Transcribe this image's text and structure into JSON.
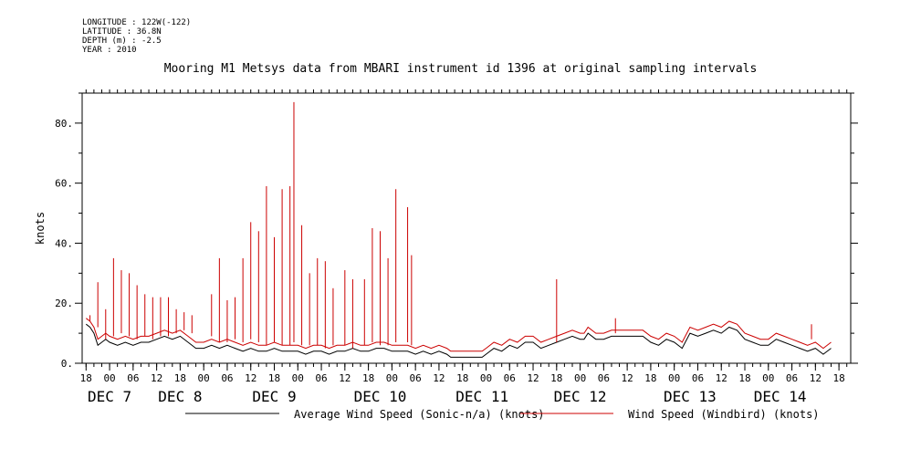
{
  "meta": {
    "longitude": "LONGITUDE : 122W(-122)",
    "latitude": "LATITUDE : 36.8N",
    "depth": "DEPTH (m) : -2.5",
    "year": "YEAR : 2010"
  },
  "chart_data": {
    "type": "line",
    "title": "Mooring M1 Metsys data from MBARI instrument id 1396 at original sampling intervals",
    "ylabel": "knots",
    "xlabel": "",
    "ylim": [
      0,
      90
    ],
    "yticks": [
      0,
      20,
      40,
      60,
      80
    ],
    "ytick_labels": [
      "0.",
      "20.",
      "40.",
      "60.",
      "80."
    ],
    "xlim": [
      0,
      186
    ],
    "x_units": "hours since DEC 6 18:00, 2010",
    "xtick_labels": [
      {
        "h": 0,
        "label": "18"
      },
      {
        "h": 6,
        "label": "00"
      },
      {
        "h": 12,
        "label": "06"
      },
      {
        "h": 18,
        "label": "12"
      },
      {
        "h": 24,
        "label": "18"
      },
      {
        "h": 30,
        "label": "00"
      },
      {
        "h": 36,
        "label": "06"
      },
      {
        "h": 42,
        "label": "12"
      },
      {
        "h": 48,
        "label": "18"
      },
      {
        "h": 54,
        "label": "00"
      },
      {
        "h": 60,
        "label": "06"
      },
      {
        "h": 66,
        "label": "12"
      },
      {
        "h": 72,
        "label": "18"
      },
      {
        "h": 78,
        "label": "00"
      },
      {
        "h": 84,
        "label": "06"
      },
      {
        "h": 90,
        "label": "12"
      },
      {
        "h": 96,
        "label": "18"
      },
      {
        "h": 102,
        "label": "00"
      },
      {
        "h": 108,
        "label": "06"
      },
      {
        "h": 114,
        "label": "12"
      },
      {
        "h": 120,
        "label": "18"
      },
      {
        "h": 126,
        "label": "00"
      },
      {
        "h": 132,
        "label": "06"
      },
      {
        "h": 138,
        "label": "12"
      },
      {
        "h": 144,
        "label": "18"
      },
      {
        "h": 150,
        "label": "00"
      },
      {
        "h": 156,
        "label": "06"
      },
      {
        "h": 162,
        "label": "12"
      },
      {
        "h": 168,
        "label": "18"
      },
      {
        "h": 174,
        "label": "00"
      },
      {
        "h": 180,
        "label": "06"
      },
      {
        "h": 186,
        "label": "12"
      },
      {
        "h": 192,
        "label": "18"
      }
    ],
    "date_labels": [
      {
        "h": 6,
        "label": "DEC  7"
      },
      {
        "h": 24,
        "label": "DEC  8"
      },
      {
        "h": 48,
        "label": "DEC  9"
      },
      {
        "h": 75,
        "label": "DEC 10"
      },
      {
        "h": 101,
        "label": "DEC 11"
      },
      {
        "h": 126,
        "label": "DEC 12"
      },
      {
        "h": 154,
        "label": "DEC 13"
      },
      {
        "h": 177,
        "label": "DEC 14"
      }
    ],
    "series": [
      {
        "name": "Average Wind Speed (Sonic-n/a) (knots)",
        "color": "#000000",
        "x": [
          0,
          1,
          2,
          3,
          4,
          5,
          6,
          8,
          10,
          12,
          14,
          16,
          18,
          20,
          22,
          24,
          26,
          28,
          30,
          32,
          34,
          36,
          38,
          40,
          42,
          44,
          46,
          48,
          50,
          52,
          54,
          56,
          58,
          60,
          62,
          64,
          66,
          68,
          70,
          72,
          74,
          76,
          78,
          80,
          82,
          84,
          86,
          88,
          90,
          92,
          93,
          94,
          96,
          98,
          100,
          101,
          102,
          104,
          106,
          108,
          110,
          112,
          114,
          116,
          118,
          120,
          122,
          124,
          126,
          127,
          128,
          130,
          132,
          134,
          136,
          138,
          140,
          142,
          144,
          146,
          148,
          150,
          152,
          154,
          156,
          158,
          160,
          162,
          164,
          166,
          168,
          170,
          172,
          174,
          176,
          178,
          180,
          182,
          184,
          186,
          188,
          190
        ],
        "y": [
          13,
          12,
          10,
          6,
          7,
          8,
          7,
          6,
          7,
          6,
          7,
          7,
          8,
          9,
          8,
          9,
          7,
          5,
          5,
          6,
          5,
          6,
          5,
          4,
          5,
          4,
          4,
          5,
          4,
          4,
          4,
          3,
          4,
          4,
          3,
          4,
          4,
          5,
          4,
          4,
          5,
          5,
          4,
          4,
          4,
          3,
          4,
          3,
          4,
          3,
          2,
          2,
          2,
          2,
          2,
          2,
          3,
          5,
          4,
          6,
          5,
          7,
          7,
          5,
          6,
          7,
          8,
          9,
          8,
          8,
          10,
          8,
          8,
          9,
          9,
          9,
          9,
          9,
          7,
          6,
          8,
          7,
          5,
          10,
          9,
          10,
          11,
          10,
          12,
          11,
          8,
          7,
          6,
          6,
          8,
          7,
          6,
          5,
          4,
          5,
          3,
          5
        ]
      },
      {
        "name": "Wind Speed (Windbird) (knots)",
        "color": "#cc0000",
        "x": [
          0,
          1,
          2,
          3,
          4,
          5,
          6,
          8,
          10,
          12,
          14,
          16,
          18,
          20,
          22,
          24,
          26,
          28,
          30,
          32,
          34,
          36,
          38,
          40,
          42,
          44,
          46,
          48,
          50,
          52,
          54,
          56,
          58,
          60,
          62,
          64,
          66,
          68,
          70,
          72,
          74,
          76,
          78,
          80,
          82,
          84,
          86,
          88,
          90,
          92,
          93,
          94,
          96,
          98,
          100,
          101,
          102,
          104,
          106,
          108,
          110,
          112,
          114,
          116,
          118,
          120,
          122,
          124,
          126,
          127,
          128,
          130,
          132,
          134,
          136,
          138,
          140,
          142,
          144,
          146,
          148,
          150,
          152,
          154,
          156,
          158,
          160,
          162,
          164,
          166,
          168,
          170,
          172,
          174,
          176,
          178,
          180,
          182,
          184,
          186,
          188,
          190
        ],
        "y": [
          15,
          14,
          12,
          8,
          9,
          10,
          9,
          8,
          9,
          8,
          9,
          9,
          10,
          11,
          10,
          11,
          9,
          7,
          7,
          8,
          7,
          8,
          7,
          6,
          7,
          6,
          6,
          7,
          6,
          6,
          6,
          5,
          6,
          6,
          5,
          6,
          6,
          7,
          6,
          6,
          7,
          7,
          6,
          6,
          6,
          5,
          6,
          5,
          6,
          5,
          4,
          4,
          4,
          4,
          4,
          4,
          5,
          7,
          6,
          8,
          7,
          9,
          9,
          7,
          8,
          9,
          10,
          11,
          10,
          10,
          12,
          10,
          10,
          11,
          11,
          11,
          11,
          11,
          9,
          8,
          10,
          9,
          7,
          12,
          11,
          12,
          13,
          12,
          14,
          13,
          10,
          9,
          8,
          8,
          10,
          9,
          8,
          7,
          6,
          7,
          5,
          7
        ],
        "spikes": [
          {
            "x": 1,
            "y": 16
          },
          {
            "x": 3,
            "y": 27
          },
          {
            "x": 5,
            "y": 18
          },
          {
            "x": 7,
            "y": 35
          },
          {
            "x": 9,
            "y": 31
          },
          {
            "x": 11,
            "y": 30
          },
          {
            "x": 13,
            "y": 26
          },
          {
            "x": 15,
            "y": 23
          },
          {
            "x": 17,
            "y": 22
          },
          {
            "x": 19,
            "y": 22
          },
          {
            "x": 21,
            "y": 22
          },
          {
            "x": 23,
            "y": 18
          },
          {
            "x": 25,
            "y": 17
          },
          {
            "x": 27,
            "y": 16
          },
          {
            "x": 32,
            "y": 23
          },
          {
            "x": 34,
            "y": 35
          },
          {
            "x": 36,
            "y": 21
          },
          {
            "x": 38,
            "y": 22
          },
          {
            "x": 40,
            "y": 35
          },
          {
            "x": 42,
            "y": 47
          },
          {
            "x": 44,
            "y": 44
          },
          {
            "x": 46,
            "y": 59
          },
          {
            "x": 48,
            "y": 42
          },
          {
            "x": 50,
            "y": 58
          },
          {
            "x": 52,
            "y": 59
          },
          {
            "x": 53,
            "y": 87
          },
          {
            "x": 55,
            "y": 46
          },
          {
            "x": 57,
            "y": 30
          },
          {
            "x": 59,
            "y": 35
          },
          {
            "x": 61,
            "y": 34
          },
          {
            "x": 63,
            "y": 25
          },
          {
            "x": 66,
            "y": 31
          },
          {
            "x": 68,
            "y": 28
          },
          {
            "x": 71,
            "y": 28
          },
          {
            "x": 73,
            "y": 45
          },
          {
            "x": 75,
            "y": 44
          },
          {
            "x": 77,
            "y": 35
          },
          {
            "x": 79,
            "y": 58
          },
          {
            "x": 82,
            "y": 52
          },
          {
            "x": 83,
            "y": 36
          },
          {
            "x": 120,
            "y": 28
          },
          {
            "x": 135,
            "y": 15
          },
          {
            "x": 185,
            "y": 13
          }
        ]
      }
    ],
    "legend": "bottom",
    "grid": false
  }
}
